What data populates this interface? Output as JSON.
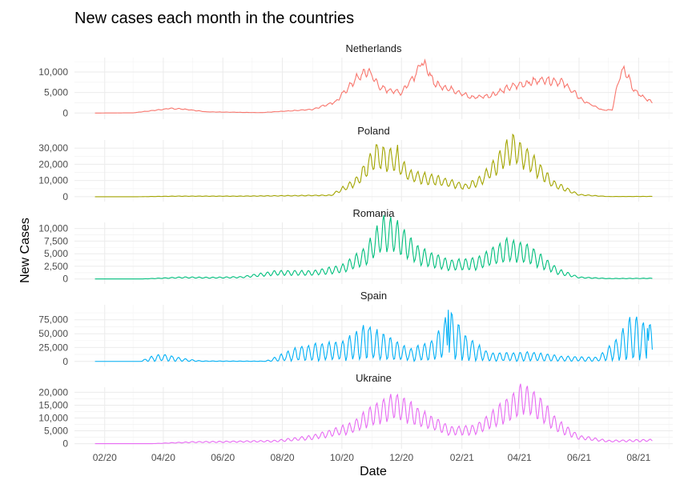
{
  "chart_data": {
    "type": "line",
    "title": "New cases each month in the countries",
    "xlabel": "Date",
    "ylabel": "New Cases",
    "grid": true,
    "legend": "none",
    "x_axis": {
      "start": "2020-01-22",
      "end": "2021-08-15",
      "range": [
        "2020-01-01",
        "2021-09-05"
      ],
      "ticks": [
        {
          "date": "2020-02-01",
          "label": "02/20"
        },
        {
          "date": "2020-04-01",
          "label": "04/20"
        },
        {
          "date": "2020-06-01",
          "label": "06/20"
        },
        {
          "date": "2020-08-01",
          "label": "08/20"
        },
        {
          "date": "2020-10-01",
          "label": "10/20"
        },
        {
          "date": "2020-12-01",
          "label": "12/20"
        },
        {
          "date": "2021-02-01",
          "label": "02/21"
        },
        {
          "date": "2021-04-01",
          "label": "04/21"
        },
        {
          "date": "2021-06-01",
          "label": "06/21"
        },
        {
          "date": "2021-08-01",
          "label": "08/21"
        }
      ]
    },
    "series": [
      {
        "name": "Netherlands",
        "color": "#F8766D",
        "ylim": [
          -1500,
          13500
        ],
        "yticks": [
          0,
          5000,
          10000
        ],
        "ytick_labels": [
          "0",
          "5,000",
          "10,000"
        ],
        "weekly_amp": 0.1,
        "noise": 0.06,
        "points": [
          [
            "2020-01-22",
            0
          ],
          [
            "2020-03-01",
            50
          ],
          [
            "2020-04-08",
            1100
          ],
          [
            "2020-04-20",
            1000
          ],
          [
            "2020-05-15",
            300
          ],
          [
            "2020-07-10",
            100
          ],
          [
            "2020-08-10",
            550
          ],
          [
            "2020-09-01",
            900
          ],
          [
            "2020-09-25",
            2800
          ],
          [
            "2020-10-15",
            8200
          ],
          [
            "2020-10-28",
            10300
          ],
          [
            "2020-11-10",
            6000
          ],
          [
            "2020-12-01",
            5000
          ],
          [
            "2020-12-15",
            9500
          ],
          [
            "2020-12-22",
            12500
          ],
          [
            "2021-01-05",
            7000
          ],
          [
            "2021-01-25",
            5500
          ],
          [
            "2021-02-10",
            3800
          ],
          [
            "2021-03-01",
            4200
          ],
          [
            "2021-03-25",
            6500
          ],
          [
            "2021-04-25",
            8200
          ],
          [
            "2021-05-15",
            7500
          ],
          [
            "2021-06-05",
            3000
          ],
          [
            "2021-06-25",
            700
          ],
          [
            "2021-07-05",
            800
          ],
          [
            "2021-07-12",
            9000
          ],
          [
            "2021-07-18",
            11000
          ],
          [
            "2021-07-27",
            5500
          ],
          [
            "2021-08-15",
            2500
          ]
        ]
      },
      {
        "name": "Poland",
        "color": "#A3A500",
        "ylim": [
          -3000,
          35000
        ],
        "yticks": [
          0,
          10000,
          20000,
          30000
        ],
        "ytick_labels": [
          "0",
          "10,000",
          "20,000",
          "30,000"
        ],
        "weekly_amp": 0.3,
        "noise": 0.05,
        "points": [
          [
            "2020-01-22",
            0
          ],
          [
            "2020-03-05",
            0
          ],
          [
            "2020-04-15",
            350
          ],
          [
            "2020-06-15",
            350
          ],
          [
            "2020-08-01",
            600
          ],
          [
            "2020-09-20",
            900
          ],
          [
            "2020-10-15",
            9000
          ],
          [
            "2020-11-05",
            25000
          ],
          [
            "2020-11-25",
            22000
          ],
          [
            "2020-12-10",
            13000
          ],
          [
            "2021-01-15",
            9000
          ],
          [
            "2021-02-05",
            6000
          ],
          [
            "2021-02-20",
            10000
          ],
          [
            "2021-03-25",
            30000
          ],
          [
            "2021-04-10",
            23000
          ],
          [
            "2021-05-05",
            8000
          ],
          [
            "2021-06-01",
            1200
          ],
          [
            "2021-07-01",
            120
          ],
          [
            "2021-08-15",
            200
          ]
        ],
        "spikes": [
          {
            "date": "2020-11-27",
            "value": 32000
          }
        ]
      },
      {
        "name": "Romania",
        "color": "#00BF7D",
        "ylim": [
          -1000,
          11200
        ],
        "yticks": [
          0,
          2500,
          5000,
          7500,
          10000
        ],
        "ytick_labels": [
          "0",
          "2,500",
          "5,000",
          "7,500",
          "10,000"
        ],
        "weekly_amp": 0.4,
        "noise": 0.04,
        "points": [
          [
            "2020-01-22",
            0
          ],
          [
            "2020-03-10",
            0
          ],
          [
            "2020-04-20",
            300
          ],
          [
            "2020-05-20",
            250
          ],
          [
            "2020-06-20",
            350
          ],
          [
            "2020-07-25",
            1200
          ],
          [
            "2020-09-01",
            1200
          ],
          [
            "2020-10-01",
            2000
          ],
          [
            "2020-10-25",
            4500
          ],
          [
            "2020-11-12",
            9000
          ],
          [
            "2020-11-25",
            8500
          ],
          [
            "2020-12-20",
            4500
          ],
          [
            "2021-01-20",
            2700
          ],
          [
            "2021-02-15",
            3000
          ],
          [
            "2021-03-20",
            5800
          ],
          [
            "2021-04-10",
            5000
          ],
          [
            "2021-05-10",
            1500
          ],
          [
            "2021-06-01",
            300
          ],
          [
            "2021-07-01",
            80
          ],
          [
            "2021-08-15",
            120
          ]
        ]
      },
      {
        "name": "Spain",
        "color": "#00B0F6",
        "ylim": [
          -9000,
          102000
        ],
        "yticks": [
          0,
          25000,
          50000,
          75000
        ],
        "ytick_labels": [
          "0",
          "25,000",
          "50,000",
          "75,000"
        ],
        "weekly_amp": 0.9,
        "noise": 0.1,
        "points": [
          [
            "2020-01-22",
            0
          ],
          [
            "2020-03-08",
            0
          ],
          [
            "2020-03-20",
            5000
          ],
          [
            "2020-03-31",
            7500
          ],
          [
            "2020-04-20",
            3000
          ],
          [
            "2020-05-10",
            500
          ],
          [
            "2020-07-15",
            300
          ],
          [
            "2020-08-20",
            15000
          ],
          [
            "2020-10-01",
            20000
          ],
          [
            "2020-10-25",
            35000
          ],
          [
            "2020-11-10",
            28000
          ],
          [
            "2020-12-10",
            12000
          ],
          [
            "2021-01-01",
            20000
          ],
          [
            "2021-01-20",
            50000
          ],
          [
            "2021-02-05",
            25000
          ],
          [
            "2021-03-01",
            8000
          ],
          [
            "2021-04-15",
            9000
          ],
          [
            "2021-05-15",
            5000
          ],
          [
            "2021-06-20",
            4000
          ],
          [
            "2021-07-10",
            22000
          ],
          [
            "2021-07-25",
            45000
          ],
          [
            "2021-08-15",
            35000
          ]
        ],
        "spikes": [
          {
            "date": "2021-01-18",
            "value": 93000
          },
          {
            "date": "2020-10-28",
            "value": 55000
          },
          {
            "date": "2021-08-10",
            "value": 60000
          }
        ]
      },
      {
        "name": "Ukraine",
        "color": "#E76BF3",
        "ylim": [
          -2000,
          22000
        ],
        "yticks": [
          0,
          5000,
          10000,
          15000,
          20000
        ],
        "ytick_labels": [
          "0",
          "5,000",
          "10,000",
          "15,000",
          "20,000"
        ],
        "weekly_amp": 0.35,
        "noise": 0.05,
        "points": [
          [
            "2020-01-22",
            0
          ],
          [
            "2020-03-20",
            0
          ],
          [
            "2020-04-30",
            600
          ],
          [
            "2020-06-15",
            800
          ],
          [
            "2020-07-25",
            1000
          ],
          [
            "2020-09-01",
            2500
          ],
          [
            "2020-10-10",
            6000
          ],
          [
            "2020-11-01",
            11000
          ],
          [
            "2020-11-25",
            15000
          ],
          [
            "2020-12-20",
            10000
          ],
          [
            "2021-01-20",
            5000
          ],
          [
            "2021-02-15",
            5500
          ],
          [
            "2021-03-15",
            12000
          ],
          [
            "2021-04-05",
            18000
          ],
          [
            "2021-04-15",
            16000
          ],
          [
            "2021-05-10",
            7000
          ],
          [
            "2021-06-01",
            2500
          ],
          [
            "2021-07-01",
            1000
          ],
          [
            "2021-08-15",
            1300
          ]
        ]
      }
    ]
  }
}
